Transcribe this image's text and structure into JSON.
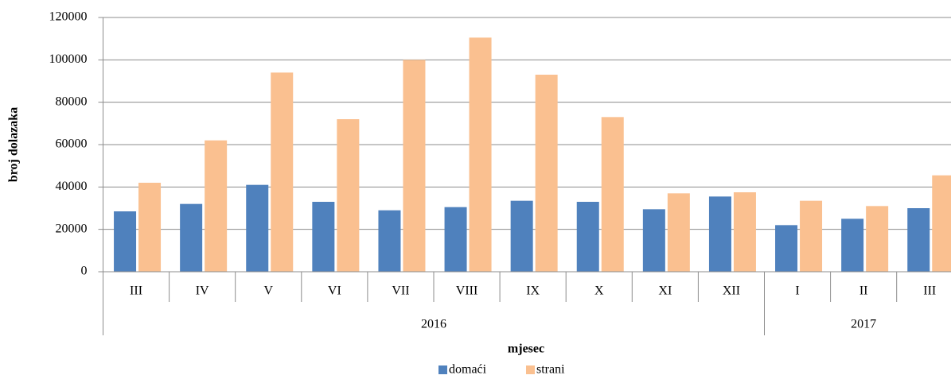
{
  "chart_data": {
    "type": "bar",
    "y_label": "broj dolazaka",
    "x_label": "mjesec",
    "categories": [
      "III",
      "IV",
      "V",
      "VI",
      "VII",
      "VIII",
      "IX",
      "X",
      "XI",
      "XII",
      "I",
      "II",
      "III"
    ],
    "groups": [
      {
        "label": "2016",
        "size": 10
      },
      {
        "label": "2017",
        "size": 3
      }
    ],
    "series": [
      {
        "name": "domaći",
        "color": "#4f81bd",
        "values": [
          28500,
          32000,
          41000,
          33000,
          29000,
          30500,
          33500,
          33000,
          29500,
          35500,
          22000,
          25000,
          30000
        ]
      },
      {
        "name": "strani",
        "color": "#fac090",
        "values": [
          42000,
          62000,
          94000,
          72000,
          100000,
          110500,
          93000,
          73000,
          37000,
          37500,
          33500,
          31000,
          45500
        ]
      }
    ],
    "ylim": [
      0,
      120000
    ],
    "yticks": [
      0,
      20000,
      40000,
      60000,
      80000,
      100000,
      120000
    ],
    "grid": true,
    "legend": "bottom"
  }
}
